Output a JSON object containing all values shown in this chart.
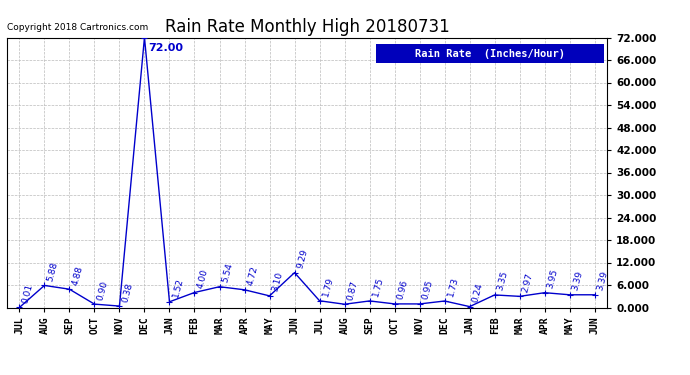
{
  "title": "Rain Rate Monthly High 20180731",
  "copyright": "Copyright 2018 Cartronics.com",
  "legend_label": "Rain Rate  (Inches/Hour)",
  "line_color": "#0000cc",
  "background_color": "#ffffff",
  "grid_color": "#bbbbbb",
  "xlabel_color": "#000000",
  "ylabel_color": "#000000",
  "annotation_color": "#0000cc",
  "months": [
    "JUL",
    "AUG",
    "SEP",
    "OCT",
    "NOV",
    "DEC",
    "JAN",
    "FEB",
    "MAR",
    "APR",
    "MAY",
    "JUN",
    "JUL",
    "AUG",
    "SEP",
    "OCT",
    "NOV",
    "DEC",
    "JAN",
    "FEB",
    "MAR",
    "APR",
    "MAY",
    "JUN"
  ],
  "values": [
    0.01,
    5.88,
    4.88,
    0.9,
    0.38,
    72.0,
    1.52,
    4.0,
    5.54,
    4.72,
    3.1,
    9.29,
    1.79,
    0.87,
    1.75,
    0.96,
    0.95,
    1.73,
    0.24,
    3.35,
    2.97,
    3.95,
    3.39,
    3.39
  ],
  "ylim": [
    0,
    72
  ],
  "ytick_interval": 6,
  "title_fontsize": 12,
  "tick_fontsize": 7,
  "annotation_fontsize": 6.5,
  "legend_fontsize": 7.5,
  "copyright_fontsize": 6.5,
  "marker": "+",
  "marker_size": 4,
  "line_width": 1.0
}
